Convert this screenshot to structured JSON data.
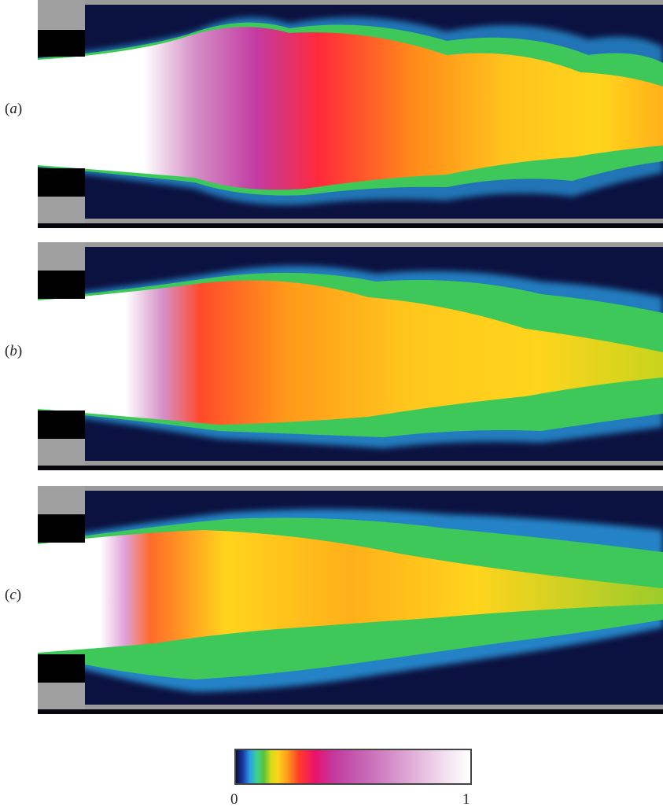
{
  "panels": [
    {
      "label": "(a)",
      "letter": "a"
    },
    {
      "label": "(b)",
      "letter": "b"
    },
    {
      "label": "(c)",
      "letter": "c"
    }
  ],
  "colorbar": {
    "min_label": "0",
    "max_label": "1",
    "colors": [
      "#0d0d3a",
      "#1a3aa8",
      "#2aa0e8",
      "#3ed08a",
      "#5cc23a",
      "#d6dc1a",
      "#ffd11c",
      "#ff9a1a",
      "#ff3a2a",
      "#e8126e",
      "#c23aa0",
      "#dca2d2",
      "#ffffff"
    ]
  }
}
